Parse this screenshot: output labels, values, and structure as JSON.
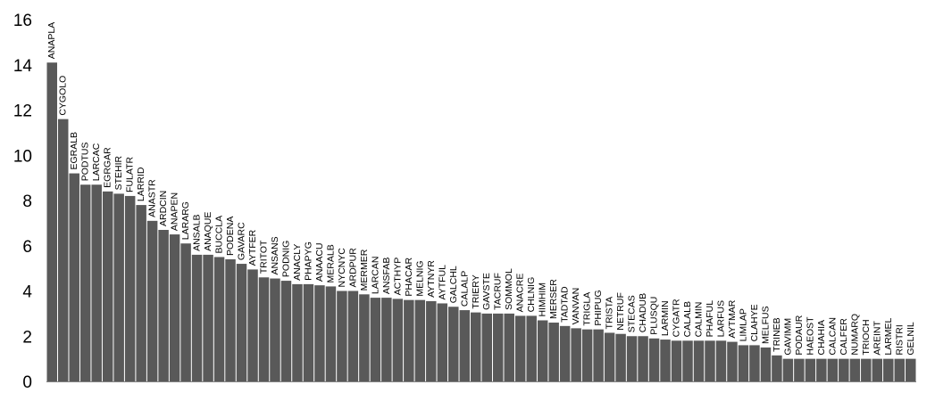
{
  "chart_data": {
    "type": "bar",
    "title": "",
    "xlabel": "",
    "ylabel": "",
    "ylim": [
      0,
      16
    ],
    "yticks": [
      0,
      2,
      4,
      6,
      8,
      10,
      12,
      14,
      16
    ],
    "grid": false,
    "bar_color": "#595959",
    "categories": [
      "ANAPLA",
      "CYGOLO",
      "EGRALB",
      "PODTUS",
      "LARCAC",
      "EGRGAR",
      "STEHIR",
      "FULATR",
      "LARRID",
      "ANASTR",
      "ARDCIN",
      "ANAPEN",
      "LARARG",
      "ANSALB",
      "ANAQUE",
      "BUCCLA",
      "PODENA",
      "GAVARC",
      "AYTFER",
      "TRITOT",
      "ANSANS",
      "PODNIG",
      "ANACLY",
      "PHAPYG",
      "ANAACU",
      "MERALB",
      "NYCNYC",
      "ARDPUR",
      "MERMER",
      "LARCAN",
      "ANSFAB",
      "ACTHYP",
      "PHACAR",
      "MELNIG",
      "AYTNYR",
      "AYTFUL",
      "GALCHL",
      "CALALP",
      "TRIERY",
      "GAVSTE",
      "TACRUF",
      "SOMMOL",
      "ANACRE",
      "CHLNIG",
      "HIMHIM",
      "MERSER",
      "TADTAD",
      "VANVAN",
      "TRIGLA",
      "PHIPUG",
      "TRISTA",
      "NETRUF",
      "STECAS",
      "CHADUB",
      "PLUSQU",
      "LARMIN",
      "CYGATR",
      "CALALB",
      "CALMIN",
      "PHAFUL",
      "LARFUS",
      "AYTMAR",
      "LIMLAP",
      "CLAHYE",
      "MELFUS",
      "TRINEB",
      "GAVIMM",
      "PODAUR",
      "HAEOST",
      "CHAHIA",
      "CALCAN",
      "CALFER",
      "NUMARQ",
      "TRIOCH",
      "AREINT",
      "LARMEL",
      "RISTRI",
      "GELNIL"
    ],
    "values": [
      14.1,
      11.6,
      9.2,
      8.7,
      8.7,
      8.4,
      8.3,
      8.2,
      7.8,
      7.1,
      6.7,
      6.5,
      6.1,
      5.6,
      5.6,
      5.5,
      5.4,
      5.2,
      4.95,
      4.6,
      4.55,
      4.45,
      4.3,
      4.3,
      4.25,
      4.2,
      4.0,
      4.0,
      3.85,
      3.7,
      3.7,
      3.65,
      3.6,
      3.6,
      3.55,
      3.45,
      3.3,
      3.15,
      3.05,
      3.0,
      3.0,
      3.0,
      2.9,
      2.9,
      2.7,
      2.6,
      2.45,
      2.35,
      2.3,
      2.3,
      2.15,
      2.1,
      2.0,
      2.0,
      1.9,
      1.85,
      1.8,
      1.8,
      1.8,
      1.8,
      1.8,
      1.75,
      1.6,
      1.6,
      1.5,
      1.15,
      1.0,
      1.0,
      1.0,
      1.0,
      1.0,
      1.0,
      1.0,
      1.0,
      1.0,
      1.0,
      1.0,
      1.0
    ]
  }
}
